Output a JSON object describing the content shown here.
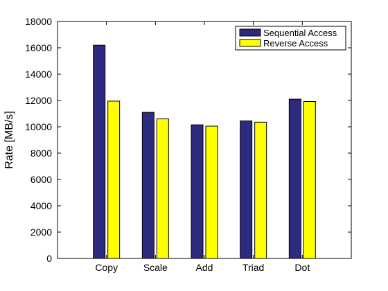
{
  "chart_data": {
    "type": "bar",
    "categories": [
      "Copy",
      "Scale",
      "Add",
      "Triad",
      "Dot"
    ],
    "series": [
      {
        "name": "Sequential Access",
        "color": "#2e2a7f",
        "values": [
          16200,
          11100,
          10150,
          10450,
          12100
        ]
      },
      {
        "name": "Reverse Access",
        "color": "#ffff00",
        "values": [
          11950,
          10600,
          10050,
          10350,
          11920
        ]
      }
    ],
    "title": "",
    "xlabel": "",
    "ylabel": "Rate [MB/s]",
    "ylim": [
      0,
      18000
    ],
    "yticks": [
      "0",
      "2000",
      "4000",
      "6000",
      "8000",
      "10000",
      "12000",
      "14000",
      "16000",
      "18000"
    ],
    "grid": false,
    "legend_position": "top-right"
  }
}
